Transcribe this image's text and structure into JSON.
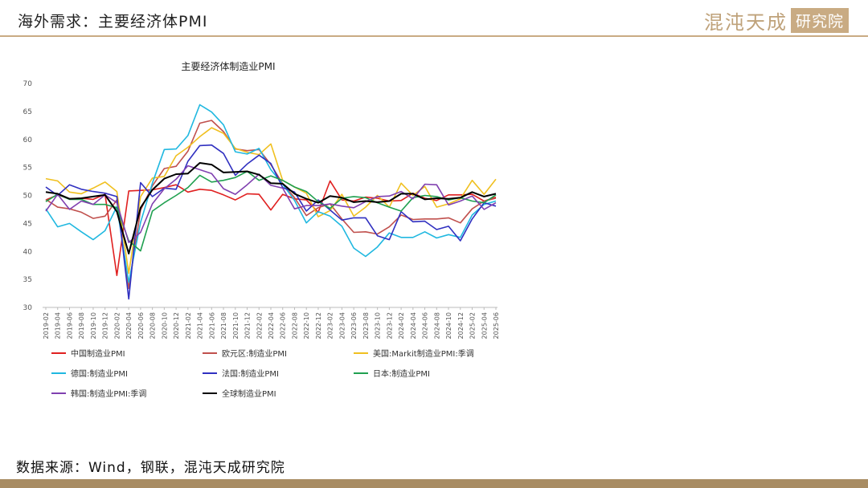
{
  "header": {
    "title": "海外需求：主要经济体PMI"
  },
  "brand": {
    "name": "混沌天成",
    "box": "研究院"
  },
  "footer": {
    "source": "数据来源：Wind，钢联，混沌天成研究院"
  },
  "chart_data": {
    "type": "line",
    "title": "主要经济体制造业PMI",
    "xlabel": "",
    "ylabel": "",
    "ylim": [
      30,
      70
    ],
    "yticks": [
      30,
      35,
      40,
      45,
      50,
      55,
      60,
      65,
      70
    ],
    "grid": false,
    "legend_position": "bottom",
    "x": [
      "2019-02",
      "2019-04",
      "2019-06",
      "2019-08",
      "2019-10",
      "2019-12",
      "2020-02",
      "2020-04",
      "2020-06",
      "2020-08",
      "2020-10",
      "2020-12",
      "2021-02",
      "2021-04",
      "2021-06",
      "2021-08",
      "2021-10",
      "2021-12",
      "2022-02",
      "2022-04",
      "2022-06",
      "2022-08",
      "2022-10",
      "2022-12",
      "2023-02",
      "2023-04",
      "2023-06",
      "2023-08",
      "2023-10",
      "2023-12",
      "2024-02",
      "2024-04",
      "2024-06",
      "2024-08",
      "2024-10",
      "2024-12",
      "2025-02",
      "2025-04",
      "2025-06"
    ],
    "series": [
      {
        "name": "中国制造业PMI",
        "color": "#e02020",
        "values": [
          49.2,
          50.1,
          49.4,
          49.5,
          49.3,
          50.2,
          35.7,
          50.8,
          50.9,
          51.0,
          51.4,
          51.9,
          50.6,
          51.1,
          50.9,
          50.1,
          49.2,
          50.3,
          50.2,
          47.4,
          50.2,
          49.4,
          49.2,
          47.0,
          52.6,
          49.2,
          49.0,
          49.7,
          49.5,
          49.0,
          49.1,
          50.4,
          49.5,
          49.1,
          50.1,
          50.1,
          50.2,
          49.0,
          49.7
        ]
      },
      {
        "name": "欧元区:制造业PMI",
        "color": "#c0504d",
        "values": [
          49.3,
          47.9,
          47.6,
          47.0,
          45.9,
          46.3,
          49.2,
          33.4,
          47.4,
          51.7,
          54.8,
          55.2,
          57.9,
          62.9,
          63.4,
          61.4,
          58.3,
          58.0,
          58.2,
          55.5,
          52.1,
          49.6,
          46.4,
          47.8,
          48.5,
          45.8,
          43.4,
          43.5,
          43.1,
          44.4,
          46.5,
          45.7,
          45.8,
          45.8,
          46.0,
          45.1,
          47.6,
          49.0,
          49.5
        ]
      },
      {
        "name": "美国:Markit制造业PMI:季调",
        "color": "#f0c020",
        "values": [
          53.0,
          52.6,
          50.6,
          50.3,
          51.3,
          52.4,
          50.7,
          36.1,
          49.8,
          53.1,
          53.4,
          57.1,
          58.6,
          60.5,
          62.1,
          61.1,
          58.4,
          57.7,
          57.3,
          59.2,
          52.7,
          51.5,
          50.4,
          46.2,
          47.3,
          50.2,
          46.3,
          47.9,
          50.0,
          47.9,
          52.2,
          50.0,
          51.6,
          47.9,
          48.5,
          49.4,
          52.7,
          50.2,
          52.9
        ]
      },
      {
        "name": "德国:制造业PMI",
        "color": "#20b8e0",
        "values": [
          47.6,
          44.4,
          45.0,
          43.5,
          42.1,
          43.7,
          48.0,
          34.5,
          45.2,
          52.2,
          58.2,
          58.3,
          60.7,
          66.2,
          64.9,
          62.6,
          57.8,
          57.4,
          58.4,
          54.6,
          52.0,
          49.1,
          45.1,
          47.1,
          46.3,
          44.5,
          40.6,
          39.1,
          40.8,
          43.3,
          42.5,
          42.5,
          43.5,
          42.4,
          43.0,
          42.5,
          46.5,
          48.4,
          49.0
        ]
      },
      {
        "name": "法国:制造业PMI",
        "color": "#3030c0",
        "values": [
          51.5,
          50.0,
          51.9,
          51.1,
          50.7,
          50.4,
          49.8,
          31.5,
          52.3,
          49.8,
          51.3,
          51.1,
          56.1,
          58.9,
          59.0,
          57.5,
          53.6,
          55.6,
          57.2,
          55.7,
          51.4,
          50.6,
          47.2,
          49.2,
          47.4,
          45.6,
          46.0,
          46.0,
          42.8,
          42.1,
          47.1,
          45.3,
          45.4,
          43.9,
          44.5,
          41.9,
          45.8,
          48.7,
          48.1
        ]
      },
      {
        "name": "日本:制造业PMI",
        "color": "#20a050",
        "values": [
          48.9,
          50.2,
          49.3,
          49.3,
          48.4,
          48.4,
          47.8,
          41.9,
          40.1,
          47.2,
          48.7,
          50.0,
          51.4,
          53.6,
          52.4,
          52.7,
          53.2,
          54.3,
          52.7,
          53.5,
          52.7,
          51.5,
          50.7,
          48.9,
          47.7,
          49.5,
          49.8,
          49.6,
          48.7,
          47.9,
          47.2,
          49.6,
          50.0,
          49.8,
          49.2,
          49.6,
          49.0,
          48.7,
          50.1
        ]
      },
      {
        "name": "韩国:制造业PMI:季调",
        "color": "#8040b0",
        "values": [
          47.2,
          50.2,
          47.5,
          49.0,
          48.4,
          50.1,
          48.7,
          41.6,
          43.4,
          48.5,
          51.2,
          52.9,
          55.3,
          54.6,
          53.9,
          51.2,
          50.2,
          51.9,
          53.8,
          51.8,
          51.3,
          47.6,
          48.2,
          48.2,
          48.5,
          48.1,
          47.8,
          48.9,
          49.8,
          49.9,
          50.7,
          49.4,
          52.0,
          51.9,
          48.3,
          49.0,
          49.9,
          47.5,
          48.7
        ]
      },
      {
        "name": "全球制造业PMI",
        "color": "#000000",
        "values": [
          50.6,
          50.3,
          49.4,
          49.5,
          49.8,
          50.1,
          47.1,
          39.6,
          47.8,
          51.0,
          53.0,
          53.8,
          53.9,
          55.8,
          55.5,
          54.1,
          54.2,
          54.3,
          53.7,
          52.2,
          52.1,
          50.3,
          49.4,
          48.7,
          49.9,
          49.6,
          48.8,
          49.0,
          48.8,
          49.0,
          50.3,
          50.3,
          49.3,
          49.5,
          49.4,
          49.6,
          50.6,
          49.8,
          50.3
        ]
      }
    ]
  }
}
